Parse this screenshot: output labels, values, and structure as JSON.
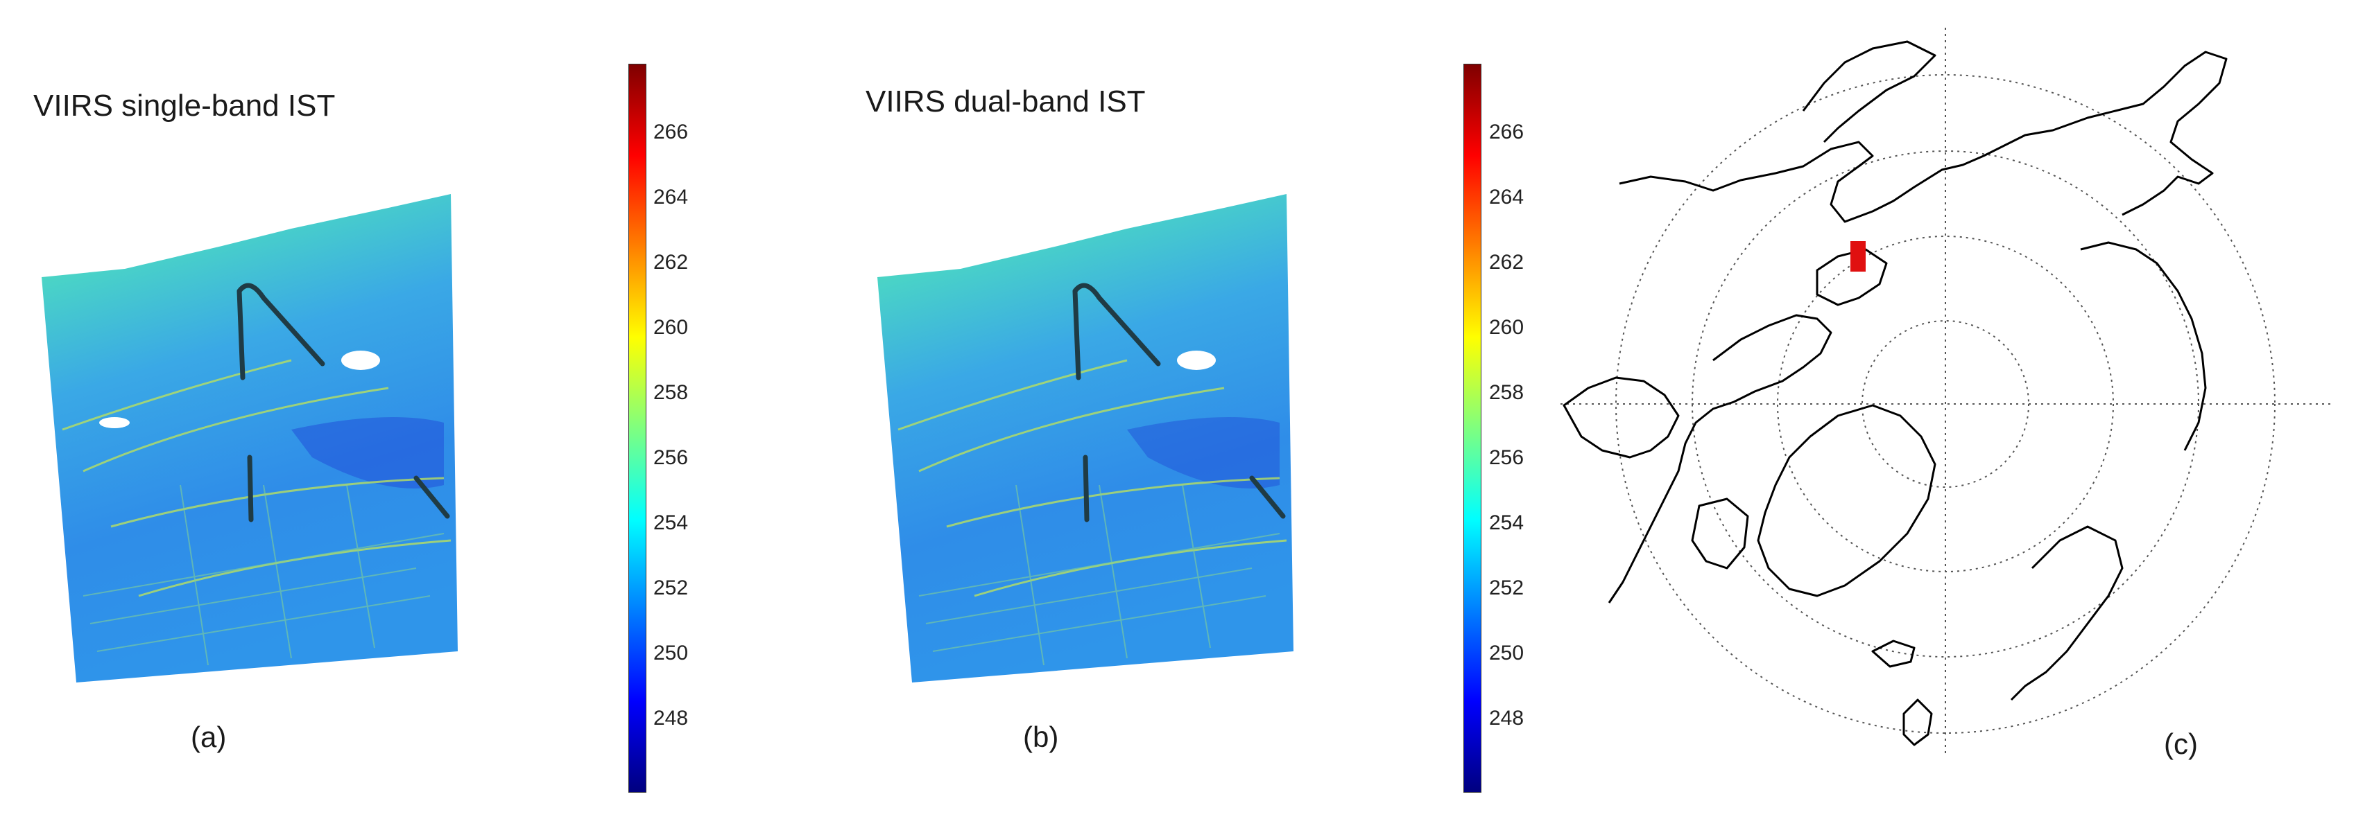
{
  "panels": [
    {
      "id": "a",
      "title": "VIIRS single-band IST",
      "label": "(a)"
    },
    {
      "id": "b",
      "title": "VIIRS dual-band IST",
      "label": "(b)"
    },
    {
      "id": "c",
      "label": "(c)"
    }
  ],
  "colorbar": {
    "ticks": [
      "266",
      "264",
      "262",
      "260",
      "258",
      "256",
      "254",
      "252",
      "250",
      "248"
    ],
    "colors": [
      "#00007f",
      "#0000ff",
      "#007fff",
      "#00ffff",
      "#7fff7f",
      "#ffff00",
      "#ff7f00",
      "#ff0000",
      "#7f0000"
    ]
  },
  "map": {
    "projection": "north polar stereographic",
    "land_outline_color": "#000000",
    "graticule_color": "#555555",
    "study_area_color": "#e01010"
  }
}
